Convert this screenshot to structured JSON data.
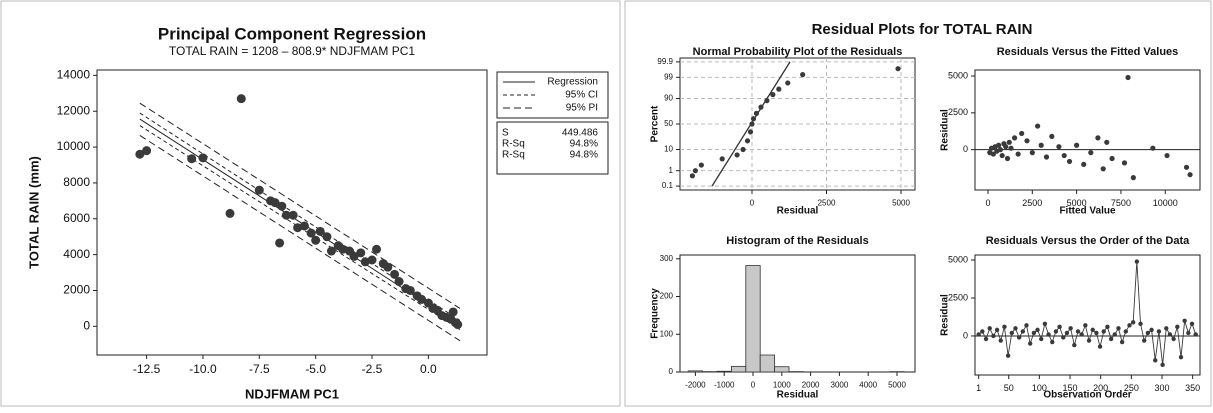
{
  "figure": {
    "title": "Residual Plots for TOTAL RAIN"
  },
  "chart_data": [
    {
      "type": "scatter",
      "title": "Principal Component Regression",
      "subtitle": "TOTAL RAIN =  1208 – 808.9*  NDJFMAM PC1",
      "xlabel": "NDJFMAM PC1",
      "ylabel": "TOTAL RAIN (mm)",
      "xlim": [
        -14.7,
        2.6
      ],
      "ylim": [
        -1600,
        14300
      ],
      "xticks": [
        -12.5,
        {
          "value": -10,
          "label": "-10.0"
        },
        -7.5,
        {
          "value": -5,
          "label": "-5.0"
        },
        -2.5,
        {
          "value": 0,
          "label": "0.0"
        }
      ],
      "yticks": [
        0,
        2000,
        4000,
        6000,
        8000,
        10000,
        12000,
        14000
      ],
      "color": "#3a3a3a",
      "points": {
        "x": [
          -12.8,
          -12.5,
          -10.5,
          -10.0,
          -8.8,
          -8.3,
          -7.5,
          -7.0,
          -6.8,
          -6.6,
          -6.5,
          -6.3,
          -6.0,
          -5.8,
          -5.5,
          -5.2,
          -5.0,
          -4.8,
          -4.5,
          -4.3,
          -4.0,
          -3.8,
          -3.5,
          -3.3,
          -3.0,
          -2.8,
          -2.5,
          -2.3,
          -2.0,
          -1.8,
          -1.5,
          -1.3,
          -1.0,
          -0.8,
          -0.5,
          -0.3,
          0.0,
          0.2,
          0.4,
          0.6,
          0.8,
          1.0,
          1.1,
          1.2,
          1.3
        ],
        "values": [
          9600,
          9800,
          9350,
          9400,
          6300,
          12700,
          7600,
          7000,
          6900,
          4650,
          6700,
          6200,
          6200,
          5500,
          5600,
          5200,
          4800,
          5300,
          5000,
          4200,
          4500,
          4300,
          4200,
          3900,
          4100,
          3600,
          3700,
          4300,
          3500,
          3300,
          2900,
          2500,
          2100,
          2000,
          1700,
          1500,
          1300,
          1000,
          900,
          600,
          500,
          400,
          800,
          200,
          100
        ]
      },
      "series": [
        {
          "name": "Regression",
          "dash": "none",
          "x": [
            -12.8,
            1.4
          ],
          "values": [
            11562,
            76
          ]
        },
        {
          "name": "95% CI",
          "dash": "4,3",
          "x": [
            -12.8,
            1.4
          ],
          "values": [
            11900,
            330
          ],
          "lower": [
            11200,
            -180
          ]
        },
        {
          "name": "95% PI",
          "dash": "7,4",
          "x": [
            -12.8,
            1.4
          ],
          "values": [
            12450,
            1000
          ],
          "lower": [
            10650,
            -800
          ]
        }
      ],
      "stats": [
        [
          "S",
          "449.486"
        ],
        [
          "R-Sq",
          "94.8%"
        ],
        [
          "R-Sq",
          "94.8%"
        ]
      ]
    },
    {
      "type": "scatter",
      "yscale": "probability",
      "grid": true,
      "title": "Normal Probability Plot of the Residuals",
      "xlabel": "Residual",
      "ylabel": "Percent",
      "xlim": [
        -2416,
        5470
      ],
      "ylim": [
        0.05,
        99.95
      ],
      "xticks": [
        0,
        2500,
        5000
      ],
      "yticks": [
        0.1,
        1,
        10,
        50,
        90,
        99,
        99.9
      ],
      "color": "#3a3a3a",
      "points": {
        "x": [
          -2000,
          -1900,
          -1700,
          -1000,
          -500,
          -300,
          -150,
          -50,
          0,
          50,
          150,
          300,
          500,
          700,
          900,
          1200,
          1700,
          4900
        ],
        "values": [
          0.5,
          1,
          2,
          4,
          6,
          10,
          20,
          35,
          50,
          60,
          70,
          80,
          88,
          93,
          96,
          98,
          99.3,
          99.7
        ]
      },
      "fit": {
        "x": [
          -1342,
          1275
        ],
        "values": [
          0.1,
          99.9
        ]
      }
    },
    {
      "type": "scatter",
      "title": "Residuals Versus the Fitted Values",
      "xlabel": "Fitted Value",
      "ylabel": "Residual",
      "xlim": [
        -733,
        11960
      ],
      "ylim": [
        -2740,
        5410
      ],
      "xticks": [
        0,
        2500,
        5000,
        7500,
        10000
      ],
      "yticks": [
        0,
        2500,
        5000
      ],
      "refline": 0,
      "color": "#3a3a3a",
      "points": {
        "x": [
          100,
          200,
          300,
          400,
          500,
          600,
          700,
          800,
          900,
          1000,
          1100,
          1200,
          1300,
          1500,
          1700,
          1900,
          2200,
          2500,
          2800,
          3000,
          3300,
          3600,
          4000,
          4300,
          4600,
          5000,
          5400,
          5800,
          6200,
          6500,
          6700,
          7000,
          7700,
          7900,
          8200,
          9300,
          10100,
          11200,
          11400
        ],
        "values": [
          -200,
          100,
          -300,
          200,
          -100,
          300,
          0,
          -400,
          400,
          200,
          -600,
          500,
          100,
          800,
          -300,
          1100,
          600,
          -200,
          1600,
          300,
          -500,
          900,
          200,
          -400,
          -800,
          300,
          -1000,
          -200,
          800,
          -1300,
          500,
          -600,
          -900,
          4900,
          -1900,
          100,
          -400,
          -1200,
          -1700
        ]
      }
    },
    {
      "type": "histogram",
      "title": "Histogram of the Residuals",
      "xlabel": "Residual",
      "ylabel": "Frequency",
      "xlim": [
        -2535,
        5625
      ],
      "ylim": [
        0,
        310
      ],
      "xticks": [
        -2000,
        -1000,
        0,
        1000,
        2000,
        3000,
        4000,
        5000
      ],
      "yticks": [
        0,
        100,
        200,
        300
      ],
      "color": "#c8c8c8",
      "bins": [
        -2250,
        -1750,
        -1250,
        -750,
        -250,
        250,
        750,
        1250,
        1750,
        2250,
        2750,
        3250,
        3750,
        4250,
        4750,
        5250
      ],
      "values": [
        3,
        1,
        2,
        15,
        282,
        45,
        14,
        1,
        0,
        0,
        0,
        0,
        0,
        0,
        1
      ]
    },
    {
      "type": "line",
      "title": "Residuals Versus the Order of the Data",
      "xlabel": "Observation Order",
      "ylabel": "Residual",
      "xlim": [
        -5,
        362
      ],
      "ylim": [
        -2570,
        5330
      ],
      "xticks": [
        1,
        50,
        100,
        150,
        200,
        250,
        300,
        350
      ],
      "yticks": [
        0,
        2500,
        5000
      ],
      "refline": 0,
      "color": "#3a3a3a",
      "points": {
        "x": [
          1,
          7,
          13,
          19,
          25,
          31,
          37,
          43,
          49,
          55,
          61,
          67,
          73,
          79,
          85,
          91,
          97,
          103,
          109,
          115,
          121,
          127,
          133,
          139,
          145,
          151,
          157,
          163,
          169,
          175,
          181,
          187,
          193,
          199,
          205,
          211,
          217,
          223,
          229,
          235,
          241,
          247,
          253,
          259,
          265,
          271,
          277,
          283,
          289,
          295,
          301,
          307,
          313,
          319,
          325,
          331,
          337,
          343,
          349,
          355
        ],
        "values": [
          100,
          300,
          -200,
          500,
          0,
          400,
          -300,
          600,
          -1300,
          200,
          500,
          -100,
          300,
          700,
          -500,
          200,
          400,
          -200,
          800,
          100,
          -400,
          300,
          600,
          -100,
          200,
          500,
          -600,
          300,
          100,
          700,
          -300,
          400,
          200,
          -700,
          300,
          600,
          -200,
          100,
          500,
          -400,
          300,
          700,
          900,
          4900,
          800,
          -300,
          200,
          400,
          -1600,
          300,
          -1900,
          500,
          100,
          -200,
          600,
          -1400,
          1000,
          200,
          800,
          100
        ]
      }
    }
  ]
}
